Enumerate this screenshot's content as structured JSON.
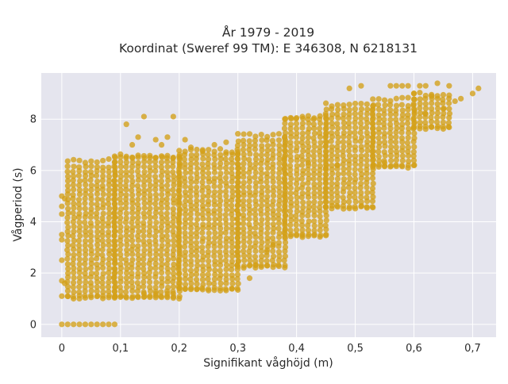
{
  "chart_data": {
    "type": "scatter",
    "title_lines": [
      "År 1979 - 2019",
      "Koordinat (Sweref 99 TM): E 346308, N 6218131"
    ],
    "xlabel": "Signifikant våghöjd (m)",
    "ylabel": "Vågperiod (s)",
    "xlim": [
      -0.035,
      0.74
    ],
    "ylim": [
      -0.5,
      9.8
    ],
    "x_ticks": [
      0,
      0.1,
      0.2,
      0.3,
      0.4,
      0.5,
      0.6,
      0.7
    ],
    "x_tick_labels": [
      "0",
      "0,1",
      "0,2",
      "0,3",
      "0,4",
      "0,5",
      "0,6",
      "0,7"
    ],
    "y_ticks": [
      0,
      2,
      4,
      6,
      8
    ],
    "y_tick_labels": [
      "0",
      "2",
      "4",
      "6",
      "8"
    ],
    "grid": true,
    "background": "#e5e5ee",
    "marker_color": "#d4a017",
    "series": [
      {
        "bands": [
          {
            "x0": 0.01,
            "x1": 0.09,
            "ylow": 1.1,
            "yhigh": 6.3
          },
          {
            "x0": 0.09,
            "x1": 0.2,
            "ylow": 1.1,
            "yhigh": 6.5
          },
          {
            "x0": 0.2,
            "x1": 0.3,
            "ylow": 1.4,
            "yhigh": 6.7
          },
          {
            "x0": 0.3,
            "x1": 0.38,
            "ylow": 2.3,
            "yhigh": 7.3
          },
          {
            "x0": 0.38,
            "x1": 0.45,
            "ylow": 3.5,
            "yhigh": 8.0
          },
          {
            "x0": 0.45,
            "x1": 0.53,
            "ylow": 4.6,
            "yhigh": 8.5
          },
          {
            "x0": 0.53,
            "x1": 0.6,
            "ylow": 6.2,
            "yhigh": 8.7
          },
          {
            "x0": 0.6,
            "x1": 0.66,
            "ylow": 7.7,
            "yhigh": 8.9
          }
        ],
        "points": [
          [
            0.0,
            0.0
          ],
          [
            0.01,
            0.0
          ],
          [
            0.02,
            0.0
          ],
          [
            0.03,
            0.0
          ],
          [
            0.04,
            0.0
          ],
          [
            0.05,
            0.0
          ],
          [
            0.06,
            0.0
          ],
          [
            0.07,
            0.0
          ],
          [
            0.08,
            0.0
          ],
          [
            0.09,
            0.0
          ],
          [
            0.0,
            1.1
          ],
          [
            0.0,
            1.7
          ],
          [
            0.0,
            2.5
          ],
          [
            0.0,
            3.3
          ],
          [
            0.0,
            3.5
          ],
          [
            0.0,
            4.3
          ],
          [
            0.0,
            4.6
          ],
          [
            0.0,
            5.0
          ],
          [
            0.005,
            1.6
          ],
          [
            0.005,
            4.9
          ],
          [
            0.11,
            7.8
          ],
          [
            0.14,
            8.1
          ],
          [
            0.19,
            8.1
          ],
          [
            0.12,
            7.0
          ],
          [
            0.13,
            7.3
          ],
          [
            0.16,
            7.2
          ],
          [
            0.17,
            7.0
          ],
          [
            0.18,
            7.3
          ],
          [
            0.21,
            7.2
          ],
          [
            0.22,
            6.9
          ],
          [
            0.24,
            6.8
          ],
          [
            0.26,
            7.0
          ],
          [
            0.28,
            7.1
          ],
          [
            0.32,
            1.8
          ],
          [
            0.33,
            2.3
          ],
          [
            0.35,
            2.9
          ],
          [
            0.36,
            3.1
          ],
          [
            0.41,
            3.4
          ],
          [
            0.49,
            9.2
          ],
          [
            0.51,
            9.3
          ],
          [
            0.56,
            9.3
          ],
          [
            0.57,
            9.3
          ],
          [
            0.58,
            9.3
          ],
          [
            0.59,
            9.3
          ],
          [
            0.61,
            9.3
          ],
          [
            0.62,
            9.3
          ],
          [
            0.64,
            9.4
          ],
          [
            0.66,
            9.3
          ],
          [
            0.7,
            9.0
          ],
          [
            0.71,
            9.2
          ],
          [
            0.6,
            9.0
          ],
          [
            0.63,
            8.9
          ],
          [
            0.67,
            8.7
          ],
          [
            0.68,
            8.8
          ],
          [
            0.65,
            8.4
          ],
          [
            0.62,
            8.2
          ],
          [
            0.14,
            1.2
          ],
          [
            0.16,
            1.2
          ],
          [
            0.18,
            1.2
          ],
          [
            0.19,
            1.2
          ],
          [
            0.42,
            6.3
          ],
          [
            0.45,
            6.1
          ],
          [
            0.47,
            6.2
          ],
          [
            0.53,
            6.2
          ],
          [
            0.55,
            6.3
          ]
        ]
      }
    ]
  }
}
